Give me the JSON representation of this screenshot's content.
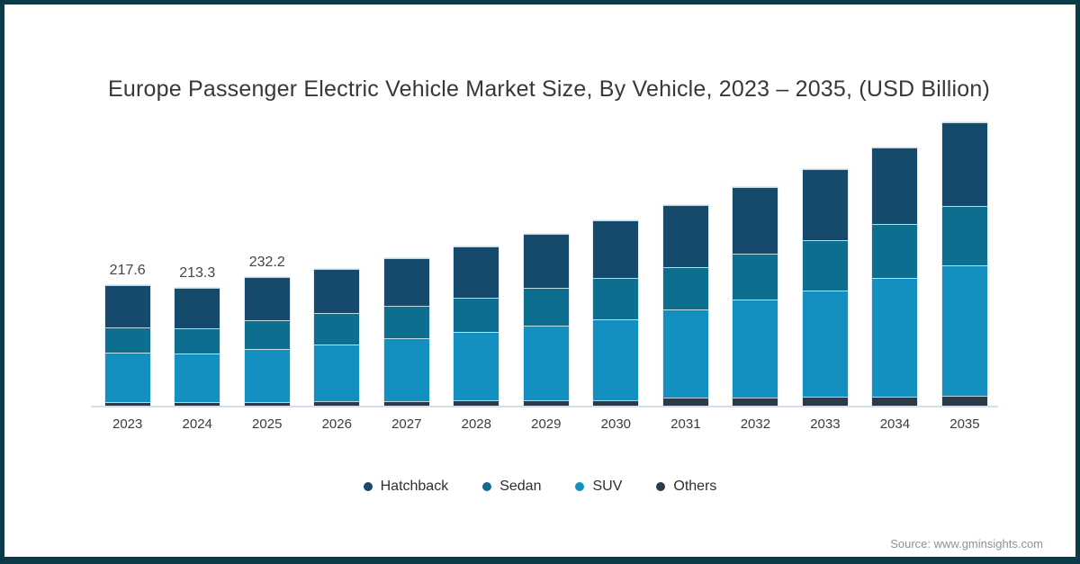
{
  "title": "Europe Passenger Electric Vehicle Market Size, By Vehicle, 2023 – 2035, (USD Billion)",
  "source_credit": "Source: www.gminsights.com",
  "colors": {
    "hatchback": "#164a6d",
    "sedan": "#0e6e90",
    "suv": "#1490c0",
    "others": "#2b3a48",
    "frame_border": "#0a3b47",
    "axis_line": "#d9dde9"
  },
  "legend": [
    {
      "label": "Hatchback",
      "color": "#164a6d"
    },
    {
      "label": "Sedan",
      "color": "#0e6e90"
    },
    {
      "label": "SUV",
      "color": "#1490c0"
    },
    {
      "label": "Others",
      "color": "#2b3a48"
    }
  ],
  "chart_data": {
    "type": "bar",
    "stacked": true,
    "title": "Europe Passenger Electric Vehicle Market Size, By Vehicle, 2023 – 2035, (USD Billion)",
    "unit": "USD Billion",
    "categories": [
      "2023",
      "2024",
      "2025",
      "2026",
      "2027",
      "2028",
      "2029",
      "2030",
      "2031",
      "2032",
      "2033",
      "2034",
      "2035"
    ],
    "series": [
      {
        "name": "Hatchback",
        "color": "#164a6d",
        "values": [
          75.0,
          73.4,
          77.4,
          79.5,
          84.3,
          90.8,
          96.7,
          103.2,
          111.2,
          119.8,
          127.3,
          137.6,
          149.4
        ]
      },
      {
        "name": "Sedan",
        "color": "#0e6e90",
        "values": [
          46.2,
          44.6,
          51.6,
          55.9,
          59.2,
          61.9,
          67.2,
          74.2,
          76.7,
          81.7,
          90.3,
          96.7,
          105.7
        ]
      },
      {
        "name": "SUV",
        "color": "#1490c0",
        "values": [
          88.3,
          87.8,
          94.7,
          102.2,
          112.3,
          122.5,
          133.5,
          145.1,
          158.0,
          175.9,
          190.7,
          212.3,
          233.9
        ]
      },
      {
        "name": "Others",
        "color": "#2b3a48",
        "values": [
          8.1,
          7.5,
          8.5,
          9.3,
          9.7,
          11.3,
          12.1,
          12.0,
          15.6,
          16.1,
          17.2,
          18.4,
          20.0
        ]
      }
    ],
    "stack_order_bottom_to_top": [
      "Others",
      "SUV",
      "Sedan",
      "Hatchback"
    ],
    "totals": [
      217.6,
      213.3,
      232.2,
      246.9,
      265.5,
      286.5,
      309.5,
      334.5,
      361.5,
      393.5,
      425.5,
      465.0,
      509.0
    ],
    "total_labels": [
      "217.6",
      "213.3",
      "232.2",
      "",
      "",
      "",
      "",
      "",
      "",
      "",
      "",
      "",
      ""
    ],
    "ylim": [
      0,
      520
    ],
    "grid": false,
    "legend_position": "bottom",
    "x_axis_labels_visible": true,
    "y_axis_visible": false
  }
}
